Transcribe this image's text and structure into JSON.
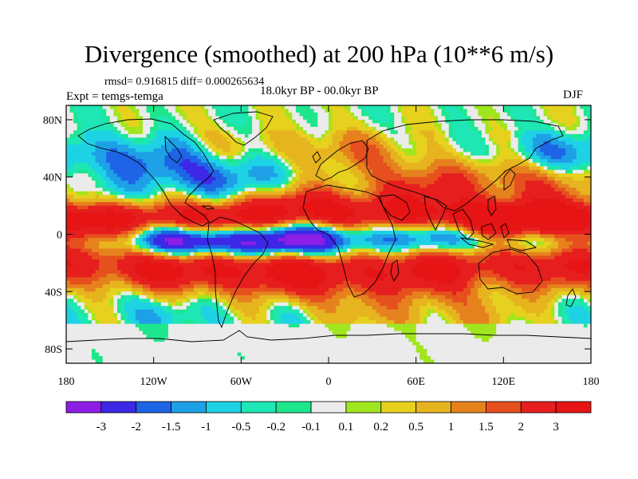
{
  "plot": {
    "title": "Divergence (smoothed) at 200 hPa (10**6 m/s)",
    "stats": "rmsd= 0.916815 diff= 0.000265634",
    "experiment": "Expt = temgs-temga",
    "period": "18.0kyr BP - 00.0kyr BP",
    "season": "DJF"
  },
  "axes": {
    "lat_ticks": [
      "80N",
      "40N",
      "0",
      "40S",
      "80S"
    ],
    "lat_values": [
      80,
      40,
      0,
      -40,
      -80
    ],
    "lon_ticks": [
      "180",
      "120W",
      "60W",
      "0",
      "60E",
      "120E",
      "180"
    ],
    "lon_values": [
      -180,
      -120,
      -60,
      0,
      60,
      120,
      180
    ]
  },
  "colorbar": {
    "labels": [
      "-3",
      "-2",
      "-1.5",
      "-1",
      "-0.5",
      "-0.2",
      "-0.1",
      "0.1",
      "0.2",
      "0.5",
      "1",
      "1.5",
      "2",
      "3"
    ],
    "colors": [
      "#8c1ee6",
      "#3c28e6",
      "#1e64e6",
      "#1ea0e6",
      "#1ed2e6",
      "#1ee6b4",
      "#1ee68c",
      "#ebebeb",
      "#a0e61e",
      "#e6d21e",
      "#e6b41e",
      "#e6821e",
      "#e6501e",
      "#e61e1e",
      "#e61414"
    ]
  }
}
